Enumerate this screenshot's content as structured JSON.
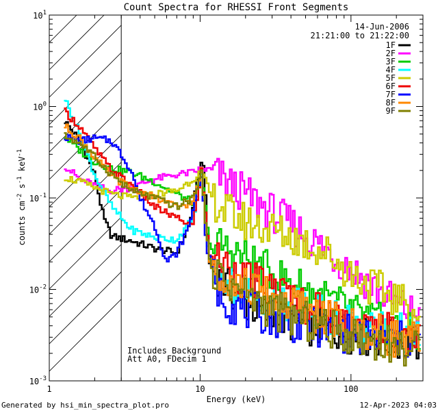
{
  "chart_data": {
    "type": "line",
    "title": "Count Spectra for RHESSI Front Segments",
    "xlabel": "Energy (keV)",
    "ylabel_main": "counts cm",
    "ylabel_exp1": "-2",
    "ylabel_mid": " s",
    "ylabel_exp2": "-1",
    "ylabel_end": " keV",
    "ylabel_exp3": "-1",
    "xscale": "log",
    "yscale": "log",
    "xlim": [
      1,
      300
    ],
    "ylim": [
      0.001,
      10
    ],
    "x_ticks": [
      {
        "value": 1,
        "label": "1"
      },
      {
        "value": 10,
        "label": "10"
      },
      {
        "value": 100,
        "label": "100"
      }
    ],
    "y_ticks": [
      {
        "value": 0.001,
        "base": "10",
        "exp": "-3"
      },
      {
        "value": 0.01,
        "base": "10",
        "exp": "-2"
      },
      {
        "value": 0.1,
        "base": "10",
        "exp": "-1"
      },
      {
        "value": 1,
        "base": "10",
        "exp": "0"
      },
      {
        "value": 10,
        "base": "10",
        "exp": "1"
      }
    ],
    "hatched_region_x": [
      1,
      3
    ],
    "date": "14-Jun-2006",
    "time_range": "21:21:00 to 21:22:00",
    "annotations": [
      "Includes Background",
      "Att A0, FDecim 1"
    ],
    "series": [
      {
        "name": "1F",
        "color": "#000000",
        "points": [
          [
            1.25,
            0.72
          ],
          [
            1.6,
            0.42
          ],
          [
            2.0,
            0.18
          ],
          [
            2.3,
            0.06
          ],
          [
            2.6,
            0.038
          ],
          [
            3.5,
            0.034
          ],
          [
            5,
            0.028
          ],
          [
            7,
            0.025
          ],
          [
            8.5,
            0.05
          ],
          [
            10,
            0.22
          ],
          [
            10.5,
            0.26
          ],
          [
            11.5,
            0.02
          ],
          [
            14,
            0.012
          ],
          [
            20,
            0.007
          ],
          [
            30,
            0.005
          ],
          [
            50,
            0.004
          ],
          [
            80,
            0.0035
          ],
          [
            120,
            0.003
          ],
          [
            200,
            0.0028
          ],
          [
            290,
            0.0025
          ]
        ]
      },
      {
        "name": "2F",
        "color": "#ff00ff",
        "points": [
          [
            1.25,
            0.23
          ],
          [
            1.6,
            0.16
          ],
          [
            2.5,
            0.12
          ],
          [
            3.5,
            0.13
          ],
          [
            5,
            0.16
          ],
          [
            7,
            0.18
          ],
          [
            9,
            0.19
          ],
          [
            10.2,
            0.21
          ],
          [
            12,
            0.2
          ],
          [
            15,
            0.15
          ],
          [
            20,
            0.11
          ],
          [
            30,
            0.07
          ],
          [
            45,
            0.045
          ],
          [
            70,
            0.026
          ],
          [
            100,
            0.017
          ],
          [
            150,
            0.01
          ],
          [
            200,
            0.007
          ],
          [
            290,
            0.005
          ]
        ]
      },
      {
        "name": "3F",
        "color": "#00cc00",
        "points": [
          [
            1.25,
            0.48
          ],
          [
            1.6,
            0.33
          ],
          [
            2.0,
            0.25
          ],
          [
            2.6,
            0.21
          ],
          [
            3.5,
            0.19
          ],
          [
            5,
            0.15
          ],
          [
            7,
            0.11
          ],
          [
            9,
            0.09
          ],
          [
            10.3,
            0.19
          ],
          [
            11.5,
            0.03
          ],
          [
            14,
            0.03
          ],
          [
            20,
            0.022
          ],
          [
            30,
            0.015
          ],
          [
            50,
            0.01
          ],
          [
            80,
            0.007
          ],
          [
            120,
            0.005
          ],
          [
            200,
            0.0038
          ],
          [
            290,
            0.003
          ]
        ]
      },
      {
        "name": "4F",
        "color": "#00ffff",
        "points": [
          [
            1.25,
            1.3
          ],
          [
            1.6,
            0.5
          ],
          [
            2.0,
            0.18
          ],
          [
            2.6,
            0.08
          ],
          [
            3.5,
            0.045
          ],
          [
            5,
            0.037
          ],
          [
            7,
            0.035
          ],
          [
            9,
            0.06
          ],
          [
            10.2,
            0.18
          ],
          [
            11.5,
            0.02
          ],
          [
            14,
            0.013
          ],
          [
            20,
            0.01
          ],
          [
            30,
            0.008
          ],
          [
            50,
            0.006
          ],
          [
            80,
            0.005
          ],
          [
            120,
            0.004
          ],
          [
            200,
            0.0035
          ],
          [
            290,
            0.003
          ]
        ]
      },
      {
        "name": "5F",
        "color": "#cccc00",
        "points": [
          [
            1.25,
            0.17
          ],
          [
            1.6,
            0.15
          ],
          [
            2.0,
            0.13
          ],
          [
            2.6,
            0.11
          ],
          [
            3.5,
            0.1
          ],
          [
            5,
            0.11
          ],
          [
            7,
            0.12
          ],
          [
            9,
            0.16
          ],
          [
            10.2,
            0.2
          ],
          [
            12,
            0.1
          ],
          [
            15,
            0.07
          ],
          [
            20,
            0.055
          ],
          [
            30,
            0.045
          ],
          [
            45,
            0.035
          ],
          [
            70,
            0.025
          ],
          [
            100,
            0.015
          ],
          [
            150,
            0.01
          ],
          [
            200,
            0.008
          ],
          [
            290,
            0.005
          ]
        ]
      },
      {
        "name": "6F",
        "color": "#ee0000",
        "points": [
          [
            1.25,
            0.9
          ],
          [
            1.6,
            0.6
          ],
          [
            2.0,
            0.35
          ],
          [
            2.6,
            0.2
          ],
          [
            3.5,
            0.14
          ],
          [
            5,
            0.08
          ],
          [
            7,
            0.06
          ],
          [
            9,
            0.05
          ],
          [
            10.2,
            0.2
          ],
          [
            11.5,
            0.025
          ],
          [
            14,
            0.02
          ],
          [
            20,
            0.013
          ],
          [
            30,
            0.01
          ],
          [
            50,
            0.007
          ],
          [
            80,
            0.005
          ],
          [
            120,
            0.004
          ],
          [
            200,
            0.0032
          ],
          [
            290,
            0.0028
          ]
        ]
      },
      {
        "name": "7F",
        "color": "#0000ff",
        "points": [
          [
            1.25,
            0.47
          ],
          [
            1.6,
            0.42
          ],
          [
            2.0,
            0.45
          ],
          [
            2.6,
            0.42
          ],
          [
            3.0,
            0.3
          ],
          [
            3.5,
            0.2
          ],
          [
            4,
            0.1
          ],
          [
            5,
            0.05
          ],
          [
            6,
            0.02
          ],
          [
            7,
            0.025
          ],
          [
            8.5,
            0.05
          ],
          [
            9.5,
            0.12
          ],
          [
            10.2,
            0.18
          ],
          [
            11,
            0.03
          ],
          [
            13,
            0.01
          ],
          [
            16,
            0.007
          ],
          [
            20,
            0.006
          ],
          [
            30,
            0.005
          ],
          [
            50,
            0.004
          ],
          [
            80,
            0.0035
          ],
          [
            120,
            0.003
          ],
          [
            200,
            0.0028
          ],
          [
            290,
            0.0025
          ]
        ]
      },
      {
        "name": "8F",
        "color": "#ff8800",
        "points": [
          [
            1.25,
            0.62
          ],
          [
            1.6,
            0.45
          ],
          [
            2.0,
            0.28
          ],
          [
            2.6,
            0.17
          ],
          [
            3.5,
            0.13
          ],
          [
            5,
            0.1
          ],
          [
            7,
            0.08
          ],
          [
            9,
            0.09
          ],
          [
            10.2,
            0.19
          ],
          [
            11.5,
            0.02
          ],
          [
            14,
            0.015
          ],
          [
            20,
            0.011
          ],
          [
            30,
            0.008
          ],
          [
            50,
            0.006
          ],
          [
            80,
            0.0045
          ],
          [
            120,
            0.0035
          ],
          [
            200,
            0.003
          ],
          [
            290,
            0.0026
          ]
        ]
      },
      {
        "name": "9F",
        "color": "#808000",
        "points": [
          [
            1.25,
            0.48
          ],
          [
            1.6,
            0.4
          ],
          [
            2.0,
            0.28
          ],
          [
            2.6,
            0.18
          ],
          [
            3.5,
            0.12
          ],
          [
            5,
            0.1
          ],
          [
            7,
            0.08
          ],
          [
            9,
            0.1
          ],
          [
            10.2,
            0.19
          ],
          [
            11.5,
            0.02
          ],
          [
            14,
            0.013
          ],
          [
            20,
            0.009
          ],
          [
            30,
            0.006
          ],
          [
            50,
            0.0045
          ],
          [
            80,
            0.0035
          ],
          [
            120,
            0.003
          ],
          [
            200,
            0.0024
          ],
          [
            290,
            0.0021
          ]
        ]
      }
    ]
  },
  "footer": {
    "left": "Generated by hsi_min_spectra_plot.pro",
    "right": "12-Apr-2023 04:03"
  }
}
